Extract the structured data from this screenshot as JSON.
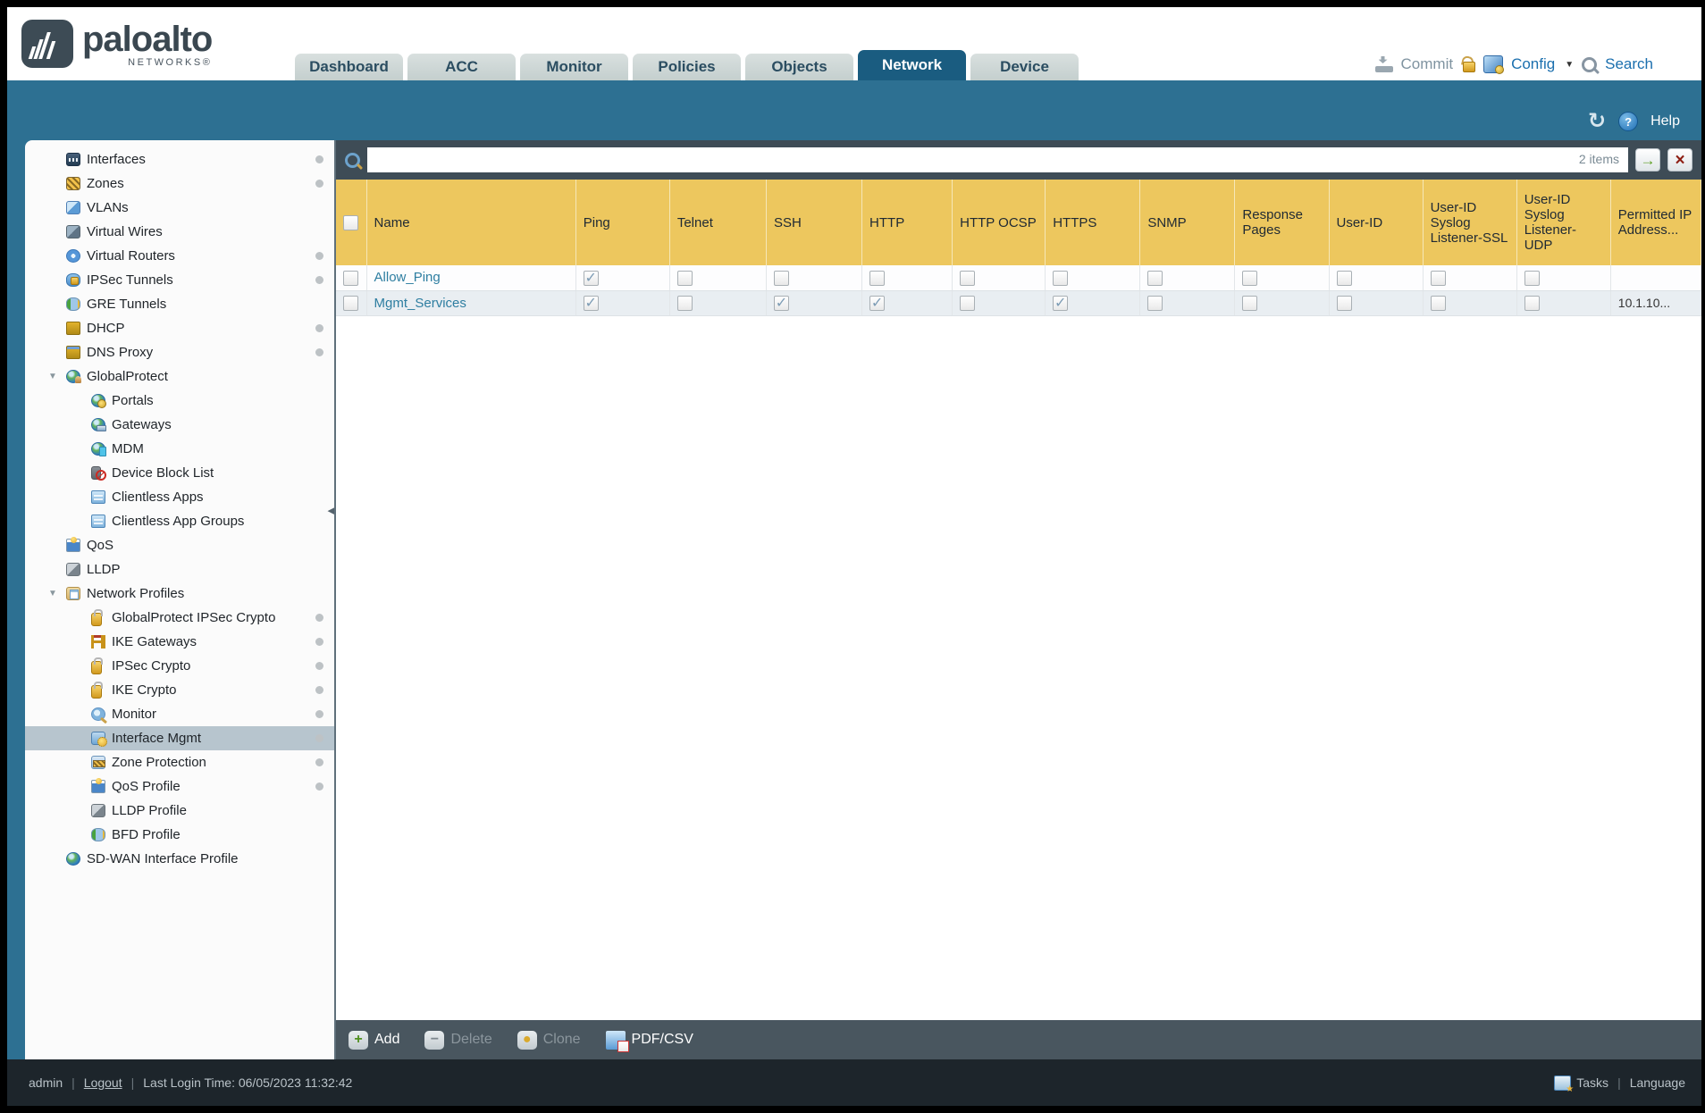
{
  "colors": {
    "teal_band": "#2d7092",
    "active_tab": "#1a5c80",
    "table_header_gold": "#edc75e",
    "sidebar_selected": "#b7c5ce",
    "row_link_text": "#2e7ea1",
    "footer_bar": "#49565f",
    "status_bar": "#1d252b"
  },
  "header": {
    "logo": {
      "brand": "paloalto",
      "networks": "NETWORKS®"
    },
    "tabs": [
      {
        "label": "Dashboard",
        "active": false
      },
      {
        "label": "ACC",
        "active": false
      },
      {
        "label": "Monitor",
        "active": false
      },
      {
        "label": "Policies",
        "active": false
      },
      {
        "label": "Objects",
        "active": false
      },
      {
        "label": "Network",
        "active": true
      },
      {
        "label": "Device",
        "active": false
      }
    ],
    "actions": {
      "commit": "Commit",
      "config": "Config",
      "search": "Search"
    }
  },
  "band": {
    "help": "Help",
    "refresh_glyph": "↻"
  },
  "sidebar": {
    "items": [
      {
        "label": "Interfaces",
        "icon": "interfaces-icon",
        "level": 0,
        "dot": true,
        "expander": false,
        "selected": false
      },
      {
        "label": "Zones",
        "icon": "zones-icon",
        "level": 0,
        "dot": true,
        "expander": false,
        "selected": false
      },
      {
        "label": "VLANs",
        "icon": "vlans-icon",
        "level": 0,
        "dot": false,
        "expander": false,
        "selected": false
      },
      {
        "label": "Virtual Wires",
        "icon": "virtual-wires-icon",
        "level": 0,
        "dot": false,
        "expander": false,
        "selected": false
      },
      {
        "label": "Virtual Routers",
        "icon": "virtual-routers-icon",
        "level": 0,
        "dot": true,
        "expander": false,
        "selected": false
      },
      {
        "label": "IPSec Tunnels",
        "icon": "ipsec-tunnels-icon",
        "level": 0,
        "dot": true,
        "expander": false,
        "selected": false
      },
      {
        "label": "GRE Tunnels",
        "icon": "gre-tunnels-icon",
        "level": 0,
        "dot": false,
        "expander": false,
        "selected": false
      },
      {
        "label": "DHCP",
        "icon": "dhcp-icon",
        "level": 0,
        "dot": true,
        "expander": false,
        "selected": false
      },
      {
        "label": "DNS Proxy",
        "icon": "dns-proxy-icon",
        "level": 0,
        "dot": true,
        "expander": false,
        "selected": false
      },
      {
        "label": "GlobalProtect",
        "icon": "globalprotect-icon",
        "level": 0,
        "dot": false,
        "expander": true,
        "selected": false
      },
      {
        "label": "Portals",
        "icon": "portals-icon",
        "level": 1,
        "dot": false,
        "expander": false,
        "selected": false
      },
      {
        "label": "Gateways",
        "icon": "gateways-icon",
        "level": 1,
        "dot": false,
        "expander": false,
        "selected": false
      },
      {
        "label": "MDM",
        "icon": "mdm-icon",
        "level": 1,
        "dot": false,
        "expander": false,
        "selected": false
      },
      {
        "label": "Device Block List",
        "icon": "device-block-list-icon",
        "level": 1,
        "dot": false,
        "expander": false,
        "selected": false
      },
      {
        "label": "Clientless Apps",
        "icon": "clientless-apps-icon",
        "level": 1,
        "dot": false,
        "expander": false,
        "selected": false
      },
      {
        "label": "Clientless App Groups",
        "icon": "clientless-app-groups-icon",
        "level": 1,
        "dot": false,
        "expander": false,
        "selected": false
      },
      {
        "label": "QoS",
        "icon": "qos-icon",
        "level": 0,
        "dot": false,
        "expander": false,
        "selected": false
      },
      {
        "label": "LLDP",
        "icon": "lldp-icon",
        "level": 0,
        "dot": false,
        "expander": false,
        "selected": false
      },
      {
        "label": "Network Profiles",
        "icon": "network-profiles-icon",
        "level": 0,
        "dot": false,
        "expander": true,
        "selected": false
      },
      {
        "label": "GlobalProtect IPSec Crypto",
        "icon": "lock-icon",
        "level": 1,
        "dot": true,
        "expander": false,
        "selected": false
      },
      {
        "label": "IKE Gateways",
        "icon": "ike-gateways-icon",
        "level": 1,
        "dot": true,
        "expander": false,
        "selected": false
      },
      {
        "label": "IPSec Crypto",
        "icon": "lock-icon",
        "level": 1,
        "dot": true,
        "expander": false,
        "selected": false
      },
      {
        "label": "IKE Crypto",
        "icon": "lock-icon",
        "level": 1,
        "dot": true,
        "expander": false,
        "selected": false
      },
      {
        "label": "Monitor",
        "icon": "monitor-icon",
        "level": 1,
        "dot": true,
        "expander": false,
        "selected": false
      },
      {
        "label": "Interface Mgmt",
        "icon": "interface-mgmt-icon",
        "level": 1,
        "dot": true,
        "expander": false,
        "selected": true
      },
      {
        "label": "Zone Protection",
        "icon": "zone-protection-icon",
        "level": 1,
        "dot": true,
        "expander": false,
        "selected": false
      },
      {
        "label": "QoS Profile",
        "icon": "qos-profile-icon",
        "level": 1,
        "dot": true,
        "expander": false,
        "selected": false
      },
      {
        "label": "LLDP Profile",
        "icon": "lldp-profile-icon",
        "level": 1,
        "dot": false,
        "expander": false,
        "selected": false
      },
      {
        "label": "BFD Profile",
        "icon": "bfd-profile-icon",
        "level": 1,
        "dot": false,
        "expander": false,
        "selected": false
      },
      {
        "label": "SD-WAN Interface Profile",
        "icon": "sdwan-interface-profile-icon",
        "level": 0,
        "dot": false,
        "expander": false,
        "selected": false
      }
    ]
  },
  "content": {
    "search": {
      "value": "",
      "count_label": "2 items"
    },
    "table": {
      "columns": [
        {
          "label": "Name",
          "type": "name"
        },
        {
          "label": "Ping",
          "type": "check",
          "key": "ping"
        },
        {
          "label": "Telnet",
          "type": "check",
          "key": "telnet"
        },
        {
          "label": "SSH",
          "type": "check",
          "key": "ssh"
        },
        {
          "label": "HTTP",
          "type": "check",
          "key": "http"
        },
        {
          "label": "HTTP OCSP",
          "type": "check",
          "key": "http_ocsp"
        },
        {
          "label": "HTTPS",
          "type": "check",
          "key": "https"
        },
        {
          "label": "SNMP",
          "type": "check",
          "key": "snmp"
        },
        {
          "label": "Response Pages",
          "type": "check",
          "key": "response_pages"
        },
        {
          "label": "User-ID",
          "type": "check",
          "key": "user_id"
        },
        {
          "label": "User-ID Syslog Listener-SSL",
          "type": "check",
          "key": "user_id_syslog_listener_ssl"
        },
        {
          "label": "User-ID Syslog Listener-UDP",
          "type": "check",
          "key": "user_id_syslog_listener_udp"
        },
        {
          "label": "Permitted IP Address...",
          "type": "text",
          "key": "permitted_ip"
        }
      ],
      "rows": [
        {
          "name": "Allow_Ping",
          "selected": false,
          "ping": true,
          "telnet": false,
          "ssh": false,
          "http": false,
          "http_ocsp": false,
          "https": false,
          "snmp": false,
          "response_pages": false,
          "user_id": false,
          "user_id_syslog_listener_ssl": false,
          "user_id_syslog_listener_udp": false,
          "permitted_ip": ""
        },
        {
          "name": "Mgmt_Services",
          "selected": false,
          "ping": true,
          "telnet": false,
          "ssh": true,
          "http": true,
          "http_ocsp": false,
          "https": true,
          "snmp": false,
          "response_pages": false,
          "user_id": false,
          "user_id_syslog_listener_ssl": false,
          "user_id_syslog_listener_udp": false,
          "permitted_ip": "10.1.10..."
        }
      ]
    },
    "footer_actions": [
      {
        "label": "Add",
        "icon": "add-icon",
        "enabled": true
      },
      {
        "label": "Delete",
        "icon": "delete-icon",
        "enabled": false
      },
      {
        "label": "Clone",
        "icon": "clone-icon",
        "enabled": false
      },
      {
        "label": "PDF/CSV",
        "icon": "pdf-csv-icon",
        "enabled": true
      }
    ]
  },
  "statusbar": {
    "user": "admin",
    "logout": "Logout",
    "last_login": "Last Login Time: 06/05/2023 11:32:42",
    "tasks": "Tasks",
    "language": "Language",
    "sep": "|"
  }
}
